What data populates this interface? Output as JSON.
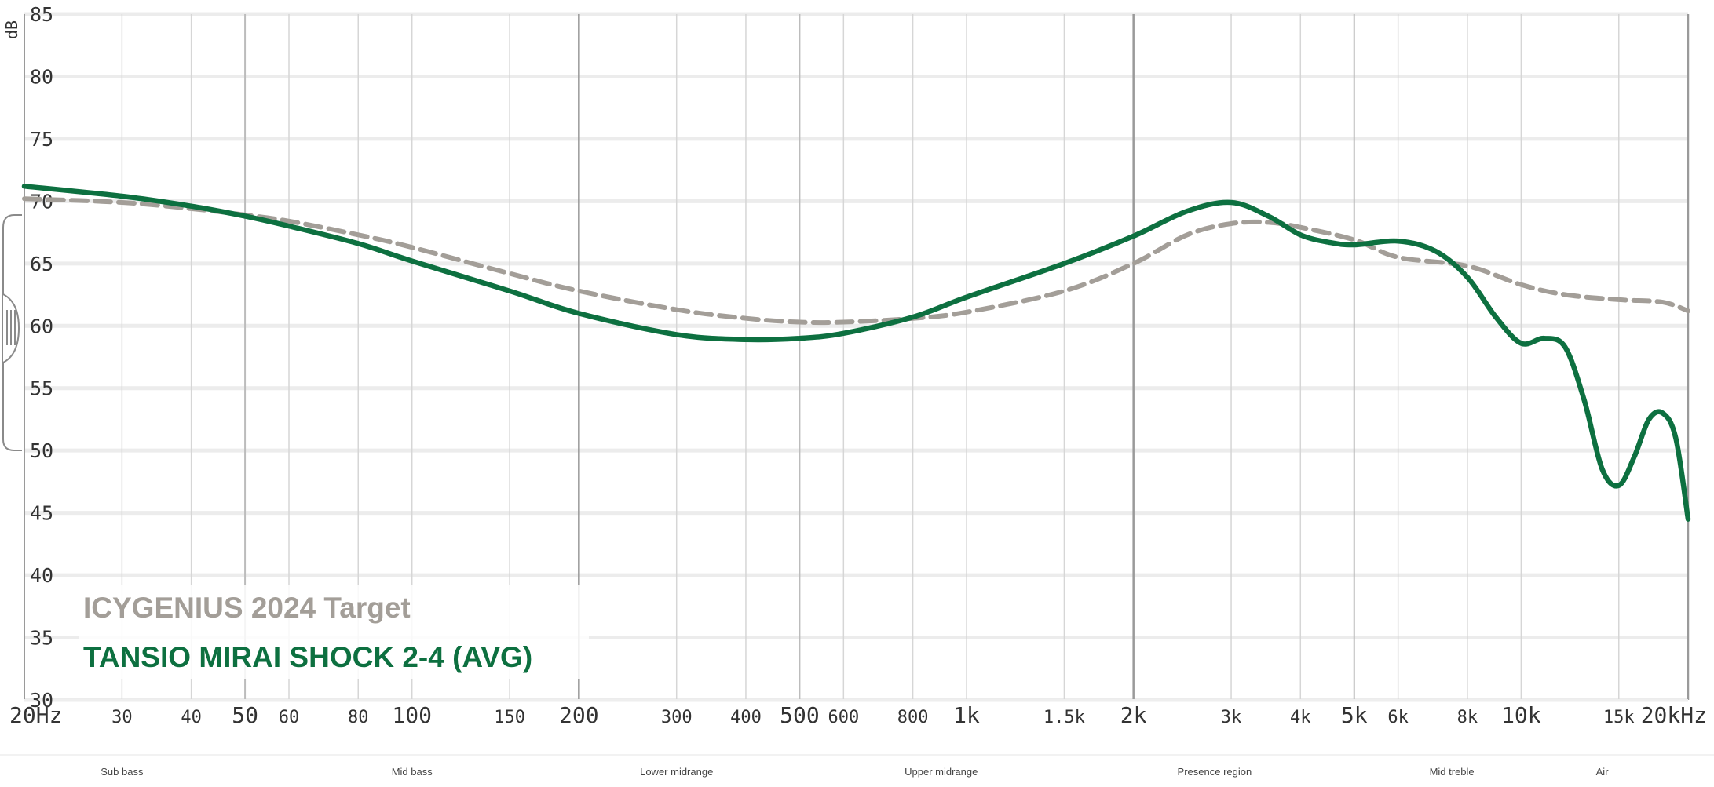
{
  "chart_data": {
    "type": "line",
    "x_scale": "log",
    "xlim": [
      20,
      20000
    ],
    "ylim": [
      30,
      85
    ],
    "ylabel": "dB",
    "y_ticks": [
      85,
      80,
      75,
      70,
      65,
      60,
      55,
      50,
      45,
      40,
      35,
      30
    ],
    "x_ticks": [
      {
        "value": 20,
        "label": "20Hz",
        "major": true
      },
      {
        "value": 30,
        "label": "30",
        "major": false
      },
      {
        "value": 40,
        "label": "40",
        "major": false
      },
      {
        "value": 50,
        "label": "50",
        "major": true
      },
      {
        "value": 60,
        "label": "60",
        "major": false
      },
      {
        "value": 80,
        "label": "80",
        "major": false
      },
      {
        "value": 100,
        "label": "100",
        "major": true
      },
      {
        "value": 150,
        "label": "150",
        "major": false
      },
      {
        "value": 200,
        "label": "200",
        "major": true
      },
      {
        "value": 300,
        "label": "300",
        "major": false
      },
      {
        "value": 400,
        "label": "400",
        "major": false
      },
      {
        "value": 500,
        "label": "500",
        "major": true
      },
      {
        "value": 600,
        "label": "600",
        "major": false
      },
      {
        "value": 800,
        "label": "800",
        "major": false
      },
      {
        "value": 1000,
        "label": "1k",
        "major": true
      },
      {
        "value": 1500,
        "label": "1.5k",
        "major": false
      },
      {
        "value": 2000,
        "label": "2k",
        "major": true
      },
      {
        "value": 3000,
        "label": "3k",
        "major": false
      },
      {
        "value": 4000,
        "label": "4k",
        "major": false
      },
      {
        "value": 5000,
        "label": "5k",
        "major": true
      },
      {
        "value": 6000,
        "label": "6k",
        "major": false
      },
      {
        "value": 8000,
        "label": "8k",
        "major": false
      },
      {
        "value": 10000,
        "label": "10k",
        "major": true
      },
      {
        "value": 15000,
        "label": "15k",
        "major": false
      },
      {
        "value": 20000,
        "label": "20kHz",
        "major": true
      }
    ],
    "dark_gridlines": [
      20,
      200,
      2000,
      20000
    ],
    "medium_gridlines": [
      50,
      500,
      5000
    ],
    "frequency_regions": [
      {
        "label": "Sub bass",
        "center": 30
      },
      {
        "label": "Mid bass",
        "center": 100
      },
      {
        "label": "Lower midrange",
        "center": 300
      },
      {
        "label": "Upper midrange",
        "center": 900
      },
      {
        "label": "Presence region",
        "center": 2800
      },
      {
        "label": "Mid treble",
        "center": 7500
      },
      {
        "label": "Air",
        "center": 14000
      }
    ],
    "legend": {
      "placement": "bottom-left"
    },
    "series": [
      {
        "name": "ICYGENIUS 2024 Target",
        "style": "dashed",
        "color": "#a39e98",
        "x": [
          20,
          30,
          40,
          50,
          60,
          80,
          100,
          150,
          200,
          300,
          400,
          500,
          600,
          800,
          1000,
          1500,
          2000,
          2500,
          3000,
          3500,
          4000,
          5000,
          6000,
          8000,
          10000,
          12000,
          15000,
          18000,
          20000
        ],
        "y": [
          70.2,
          69.9,
          69.4,
          68.9,
          68.4,
          67.3,
          66.3,
          64.2,
          62.8,
          61.3,
          60.6,
          60.3,
          60.3,
          60.6,
          61.1,
          62.8,
          65.0,
          67.3,
          68.2,
          68.3,
          67.9,
          66.9,
          65.5,
          64.8,
          63.3,
          62.5,
          62.1,
          61.9,
          61.2
        ]
      },
      {
        "name": "TANSIO MIRAI SHOCK 2-4 (AVG)",
        "style": "solid",
        "color": "#0d7040",
        "x": [
          20,
          30,
          40,
          50,
          60,
          80,
          100,
          150,
          200,
          300,
          400,
          500,
          600,
          800,
          1000,
          1500,
          2000,
          2500,
          3000,
          3500,
          4000,
          4500,
          5000,
          6000,
          7000,
          8000,
          9000,
          10000,
          11000,
          12000,
          13000,
          14000,
          15000,
          16000,
          17000,
          18000,
          19000,
          20000
        ],
        "y": [
          71.2,
          70.4,
          69.6,
          68.8,
          68.0,
          66.6,
          65.2,
          62.8,
          61.0,
          59.3,
          58.9,
          59.0,
          59.4,
          60.7,
          62.3,
          65.0,
          67.2,
          69.2,
          69.9,
          68.8,
          67.3,
          66.7,
          66.5,
          66.8,
          66.0,
          63.9,
          60.7,
          58.6,
          59.0,
          58.3,
          54.0,
          48.5,
          47.2,
          49.5,
          52.5,
          53.0,
          51.0,
          44.5
        ]
      }
    ]
  }
}
